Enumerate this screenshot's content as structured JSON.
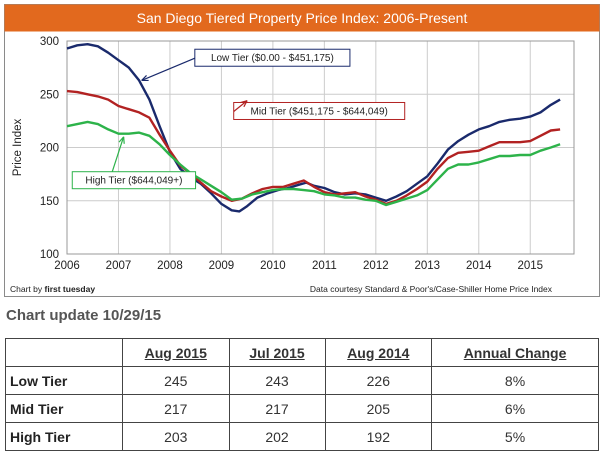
{
  "chart_data": {
    "type": "line",
    "title": "San Diego Tiered Property Price Index: 2006-Present",
    "ylabel": "Price Index",
    "xlabel": "",
    "ylim": [
      100,
      300
    ],
    "xlim": [
      2006,
      2015.85
    ],
    "yticks": [
      100,
      150,
      200,
      250,
      300
    ],
    "xticks": [
      2006,
      2007,
      2008,
      2009,
      2010,
      2011,
      2012,
      2013,
      2014,
      2015
    ],
    "grid": true,
    "series": [
      {
        "name": "Low Tier ($0.00 - $451,175)",
        "color": "#1a2a6c",
        "points": [
          [
            2006.0,
            293
          ],
          [
            2006.2,
            296
          ],
          [
            2006.4,
            297
          ],
          [
            2006.6,
            295
          ],
          [
            2006.8,
            289
          ],
          [
            2007.0,
            282
          ],
          [
            2007.2,
            275
          ],
          [
            2007.4,
            263
          ],
          [
            2007.6,
            245
          ],
          [
            2007.8,
            220
          ],
          [
            2008.0,
            196
          ],
          [
            2008.2,
            180
          ],
          [
            2008.4,
            172
          ],
          [
            2008.6,
            166
          ],
          [
            2008.8,
            157
          ],
          [
            2009.0,
            147
          ],
          [
            2009.2,
            141
          ],
          [
            2009.35,
            140
          ],
          [
            2009.5,
            145
          ],
          [
            2009.7,
            153
          ],
          [
            2009.9,
            157
          ],
          [
            2010.1,
            160
          ],
          [
            2010.3,
            162
          ],
          [
            2010.5,
            165
          ],
          [
            2010.65,
            167
          ],
          [
            2010.8,
            164
          ],
          [
            2011.0,
            162
          ],
          [
            2011.2,
            158
          ],
          [
            2011.4,
            156
          ],
          [
            2011.6,
            157
          ],
          [
            2011.8,
            156
          ],
          [
            2012.0,
            153
          ],
          [
            2012.2,
            150
          ],
          [
            2012.4,
            154
          ],
          [
            2012.6,
            159
          ],
          [
            2012.8,
            166
          ],
          [
            2013.0,
            173
          ],
          [
            2013.2,
            185
          ],
          [
            2013.4,
            198
          ],
          [
            2013.6,
            206
          ],
          [
            2013.8,
            212
          ],
          [
            2014.0,
            217
          ],
          [
            2014.2,
            220
          ],
          [
            2014.4,
            224
          ],
          [
            2014.6,
            226
          ],
          [
            2014.8,
            227
          ],
          [
            2015.0,
            229
          ],
          [
            2015.2,
            233
          ],
          [
            2015.4,
            240
          ],
          [
            2015.58,
            245
          ]
        ]
      },
      {
        "name": "Mid Tier ($451,175 - $644,049)",
        "color": "#b22222",
        "points": [
          [
            2006.0,
            253
          ],
          [
            2006.2,
            252
          ],
          [
            2006.4,
            250
          ],
          [
            2006.6,
            248
          ],
          [
            2006.8,
            245
          ],
          [
            2007.0,
            239
          ],
          [
            2007.2,
            236
          ],
          [
            2007.4,
            233
          ],
          [
            2007.6,
            228
          ],
          [
            2007.8,
            212
          ],
          [
            2008.0,
            197
          ],
          [
            2008.2,
            183
          ],
          [
            2008.4,
            176
          ],
          [
            2008.6,
            167
          ],
          [
            2008.8,
            159
          ],
          [
            2009.0,
            154
          ],
          [
            2009.2,
            150
          ],
          [
            2009.4,
            152
          ],
          [
            2009.6,
            157
          ],
          [
            2009.8,
            161
          ],
          [
            2010.0,
            163
          ],
          [
            2010.2,
            163
          ],
          [
            2010.4,
            166
          ],
          [
            2010.6,
            169
          ],
          [
            2010.8,
            163
          ],
          [
            2011.0,
            158
          ],
          [
            2011.2,
            156
          ],
          [
            2011.4,
            157
          ],
          [
            2011.6,
            158
          ],
          [
            2011.8,
            154
          ],
          [
            2012.0,
            151
          ],
          [
            2012.2,
            147
          ],
          [
            2012.4,
            150
          ],
          [
            2012.6,
            155
          ],
          [
            2012.8,
            161
          ],
          [
            2013.0,
            168
          ],
          [
            2013.2,
            180
          ],
          [
            2013.4,
            190
          ],
          [
            2013.6,
            195
          ],
          [
            2013.8,
            196
          ],
          [
            2014.0,
            197
          ],
          [
            2014.2,
            201
          ],
          [
            2014.4,
            205
          ],
          [
            2014.6,
            205
          ],
          [
            2014.8,
            205
          ],
          [
            2015.0,
            206
          ],
          [
            2015.2,
            211
          ],
          [
            2015.4,
            216
          ],
          [
            2015.58,
            217
          ]
        ]
      },
      {
        "name": "High Tier ($644,049+)",
        "color": "#2db34a",
        "points": [
          [
            2006.0,
            220
          ],
          [
            2006.2,
            222
          ],
          [
            2006.4,
            224
          ],
          [
            2006.6,
            222
          ],
          [
            2006.8,
            217
          ],
          [
            2007.0,
            213
          ],
          [
            2007.2,
            213
          ],
          [
            2007.4,
            214
          ],
          [
            2007.6,
            211
          ],
          [
            2007.8,
            203
          ],
          [
            2008.0,
            193
          ],
          [
            2008.2,
            184
          ],
          [
            2008.4,
            176
          ],
          [
            2008.6,
            170
          ],
          [
            2008.8,
            164
          ],
          [
            2009.0,
            158
          ],
          [
            2009.2,
            151
          ],
          [
            2009.4,
            152
          ],
          [
            2009.6,
            156
          ],
          [
            2009.8,
            158
          ],
          [
            2010.0,
            160
          ],
          [
            2010.2,
            161
          ],
          [
            2010.4,
            161
          ],
          [
            2010.6,
            160
          ],
          [
            2010.8,
            159
          ],
          [
            2011.0,
            156
          ],
          [
            2011.2,
            155
          ],
          [
            2011.4,
            153
          ],
          [
            2011.6,
            153
          ],
          [
            2011.8,
            151
          ],
          [
            2012.0,
            150
          ],
          [
            2012.2,
            146
          ],
          [
            2012.4,
            149
          ],
          [
            2012.6,
            152
          ],
          [
            2012.8,
            155
          ],
          [
            2013.0,
            160
          ],
          [
            2013.2,
            170
          ],
          [
            2013.4,
            180
          ],
          [
            2013.6,
            184
          ],
          [
            2013.8,
            184
          ],
          [
            2014.0,
            186
          ],
          [
            2014.2,
            189
          ],
          [
            2014.4,
            192
          ],
          [
            2014.6,
            192
          ],
          [
            2014.8,
            193
          ],
          [
            2015.0,
            193
          ],
          [
            2015.2,
            197
          ],
          [
            2015.4,
            200
          ],
          [
            2015.58,
            203
          ]
        ]
      }
    ],
    "annotations": [
      {
        "text": "Low Tier ($0.00 - $451,175)",
        "series": 0,
        "target": [
          2007.45,
          263
        ],
        "label_at": [
          2008.6,
          281
        ],
        "anchor": "start"
      },
      {
        "text": "Mid Tier ($451,175 - $644,049)",
        "series": 1,
        "target": [
          2009.5,
          244
        ],
        "label_at": [
          2010.9,
          231
        ],
        "anchor": "middle"
      },
      {
        "text": "High Tier ($644,049+)",
        "series": 2,
        "target": [
          2007.1,
          210
        ],
        "label_at": [
          2007.3,
          166
        ],
        "anchor": "middle"
      }
    ],
    "source_left_prefix": "Chart by ",
    "source_left_bold": "first tuesday",
    "source_right": "Data courtesy Standard & Poor's/Case-Shiller Home Price Index",
    "colors": {
      "title_bg": "#e2691e",
      "title_text": "#ffffff",
      "frame": "#8a8a8a",
      "grid": "#cccccc"
    }
  },
  "update_title": "Chart update 10/29/15",
  "table": {
    "columns": [
      "Aug 2015",
      "Jul 2015",
      "Aug 2014",
      "Annual Change"
    ],
    "rows": [
      {
        "label": "Low Tier",
        "values": [
          "245",
          "243",
          "226",
          "8%"
        ]
      },
      {
        "label": "Mid Tier",
        "values": [
          "217",
          "217",
          "205",
          "6%"
        ]
      },
      {
        "label": "High Tier",
        "values": [
          "203",
          "202",
          "192",
          "5%"
        ]
      }
    ]
  }
}
